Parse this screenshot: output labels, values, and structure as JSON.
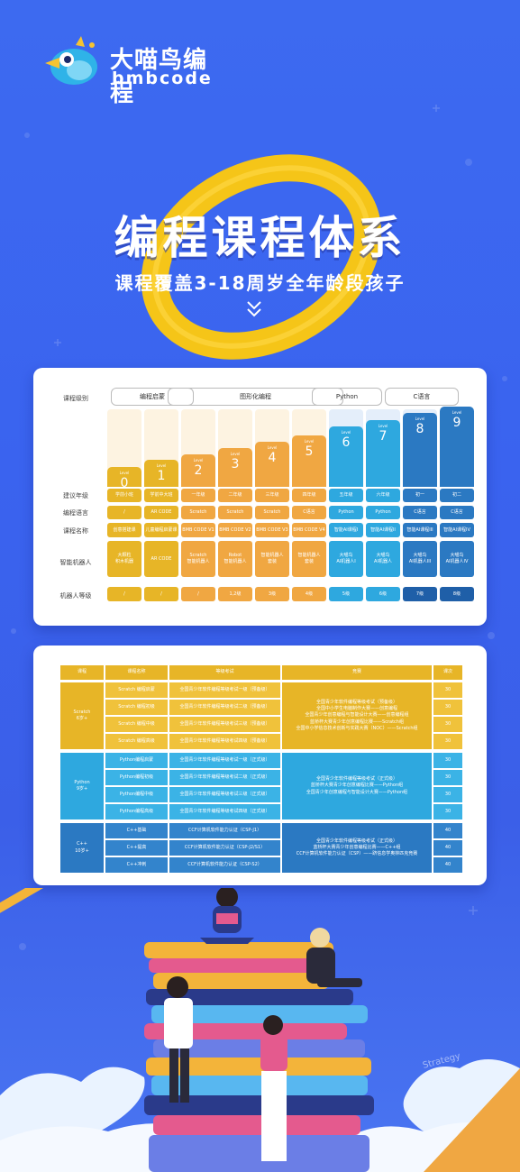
{
  "logo": {
    "name_cn": "大喵鸟编程",
    "name_en": "bmbcode"
  },
  "hero": {
    "title": "编程课程体系",
    "subtitle": "课程覆盖3-18周岁全年龄段孩子"
  },
  "colors": {
    "background": "#3b63ee",
    "accent_yellow": "#f5c518",
    "stage_yellow": "#e7b527",
    "stage_orange": "#f0a742",
    "stage_teal": "#2ea8df",
    "stage_blue": "#2b79c2",
    "stage_navy": "#1f5fa8"
  },
  "system": {
    "row_labels": [
      "课程级别",
      "建议年级",
      "编程语言",
      "课程名称",
      "智能机器人",
      "机器人等级"
    ],
    "groups": [
      "编程启蒙",
      "图形化编程",
      "Python",
      "C语言"
    ],
    "levels": [
      {
        "level": "Level",
        "number": "0",
        "grade": "学前小班",
        "lang": "/",
        "course": "创意搭建课",
        "robot": "大颗粒\n积木机器",
        "robot_level": "/"
      },
      {
        "level": "Level",
        "number": "1",
        "grade": "学前中大班",
        "lang": "AR CODE",
        "course": "儿童编程启蒙课",
        "robot": "AR CODE",
        "robot_level": "/"
      },
      {
        "level": "Level",
        "number": "2",
        "grade": "一年级",
        "lang": "Scratch",
        "course": "BMB CODE V1",
        "robot": "Scratch\n智能机器人",
        "robot_level": "/"
      },
      {
        "level": "Level",
        "number": "3",
        "grade": "二年级",
        "lang": "Scratch",
        "course": "BMB CODE V2",
        "robot": "Robot\n智能机器人",
        "robot_level": "1,2级"
      },
      {
        "level": "Level",
        "number": "4",
        "grade": "三年级",
        "lang": "Scratch",
        "course": "BMB CODE V3",
        "robot": "智能机器人\n套装",
        "robot_level": "3级"
      },
      {
        "level": "Level",
        "number": "5",
        "grade": "四年级",
        "lang": "C语言",
        "course": "BMB CODE V4",
        "robot": "智能机器人\n套装",
        "robot_level": "4级"
      },
      {
        "level": "Level",
        "number": "6",
        "grade": "五年级",
        "lang": "Python",
        "course": "智能AI课程I",
        "robot": "大喵鸟\nAI机器人I",
        "robot_level": "5级"
      },
      {
        "level": "Level",
        "number": "7",
        "grade": "六年级",
        "lang": "Python",
        "course": "智能AI课程II",
        "robot": "大喵鸟\nAI机器人",
        "robot_level": "6级"
      },
      {
        "level": "Level",
        "number": "8",
        "grade": "初一",
        "lang": "C语言",
        "course": "智能AI课程III",
        "robot": "大喵鸟\nAI机器人III",
        "robot_level": "7级"
      },
      {
        "level": "Level",
        "number": "9",
        "grade": "初二",
        "lang": "C语言",
        "course": "智能AI课程IV",
        "robot": "大喵鸟\nAI机器人IV",
        "robot_level": "8级"
      }
    ]
  },
  "courses": {
    "headers": [
      "课程",
      "课程名称",
      "等级考试",
      "竞赛",
      "课次"
    ],
    "sections": [
      {
        "track": "Scratch",
        "age": "6岁+",
        "rows": [
          {
            "name": "Scratch 编程启蒙",
            "exam": "全国青少年软件编程等级考试一级（预备级）",
            "sessions": "30"
          },
          {
            "name": "Scratch 编程初级",
            "exam": "全国青少年软件编程等级考试二级（预备级）",
            "sessions": "30"
          },
          {
            "name": "Scratch 编程中级",
            "exam": "全国青少年软件编程等级考试三级（预备级）",
            "sessions": "30"
          },
          {
            "name": "Scratch 编程高级",
            "exam": "全国青少年软件编程等级考试四级（预备级）",
            "sessions": "30"
          }
        ],
        "competitions": [
          "全国青少年软件编程等级考试（预备级）",
          "全国中小学生电脑制作大赛——创意编程",
          "全国青少年创意编程与智能设计大赛——创意编程组",
          "蓝桥杯大赛青少年创意编程比赛——Scratch组",
          "全国中小学信息技术创新与实践大赛（NOC）——Scratch组"
        ]
      },
      {
        "track": "Python",
        "age": "9岁+",
        "rows": [
          {
            "name": "Python编程启蒙",
            "exam": "全国青少年软件编程等级考试一级（正式级）",
            "sessions": "30"
          },
          {
            "name": "Python编程初级",
            "exam": "全国青少年软件编程等级考试二级（正式级）",
            "sessions": "30"
          },
          {
            "name": "Python编程中级",
            "exam": "全国青少年软件编程等级考试三级（正式级）",
            "sessions": "30"
          },
          {
            "name": "Python编程高级",
            "exam": "全国青少年软件编程等级考试四级（正式级）",
            "sessions": "30"
          }
        ],
        "competitions": [
          "全国青少年软件编程等级考试（正式级）",
          "蓝桥杯大赛青少年创意编程比赛——Python组",
          "全国青少年创意编程与智能设计大赛——Python组"
        ]
      },
      {
        "track": "C++",
        "age": "10岁+",
        "rows": [
          {
            "name": "C++基础",
            "exam": "CCF计算机软件能力认证（CSP-J1）",
            "sessions": "40"
          },
          {
            "name": "C++提高",
            "exam": "CCF计算机软件能力认证（CSP-J2/S1）",
            "sessions": "40"
          },
          {
            "name": "C++冲刺",
            "exam": "CCF计算机软件能力认证（CSP-S2）",
            "sessions": "40"
          }
        ],
        "competitions": [
          "全国青少年软件编程等级考试（正式级）",
          "蓝桥杯大赛青少年创意编程比赛——C++组",
          "CCF计算机软件能力认证（CSP）——跻信息学奥林匹克竞赛"
        ]
      }
    ]
  },
  "illustration": {
    "book_text": "Strategy"
  }
}
